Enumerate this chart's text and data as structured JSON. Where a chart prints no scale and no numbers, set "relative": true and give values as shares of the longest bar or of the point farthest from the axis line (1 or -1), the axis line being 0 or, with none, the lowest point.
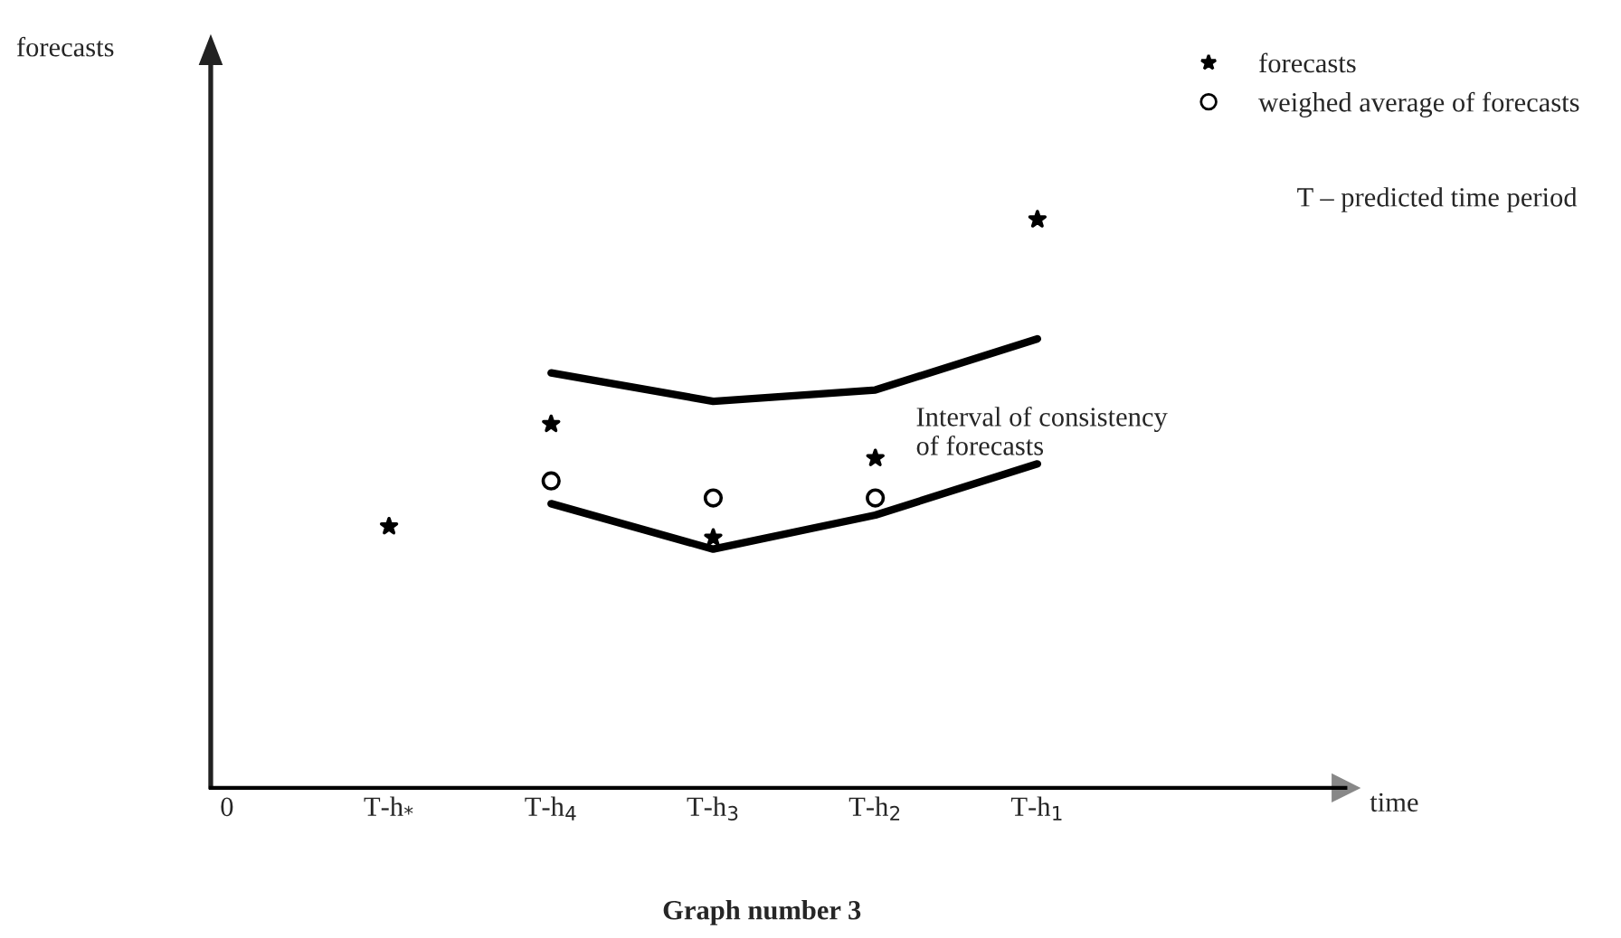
{
  "chart_data": {
    "type": "scatter",
    "title": "Graph number 3",
    "relative": true,
    "categories": [
      "0",
      "T-h$_{*}$",
      "T-h$_{4}$",
      "T-h$_{3}$",
      "T-h$_{2}$",
      "T-h$_{1}$"
    ],
    "series": [
      {
        "name": "forecasts",
        "color": "#000000",
        "marker": "star",
        "values": [
          null,
          0.46,
          0.64,
          0.44,
          0.58,
          1.0
        ]
      },
      {
        "name": "weighed average of forecasts",
        "color": "#000000",
        "marker": "circle",
        "values": [
          null,
          null,
          0.54,
          0.51,
          0.51,
          null
        ]
      },
      {
        "type": "line",
        "color": "#000000",
        "values": [
          null,
          null,
          0.73,
          0.68,
          0.7,
          0.79
        ]
      },
      {
        "type": "line",
        "color": "#000000",
        "values": [
          null,
          null,
          0.5,
          0.42,
          0.48,
          0.57
        ]
      }
    ],
    "annotations": [
      "T – predicted time period",
      "Interval of consistency\nof forecasts",
      "forecasts",
      "time"
    ],
    "legend": "top right",
    "grid": false
  }
}
